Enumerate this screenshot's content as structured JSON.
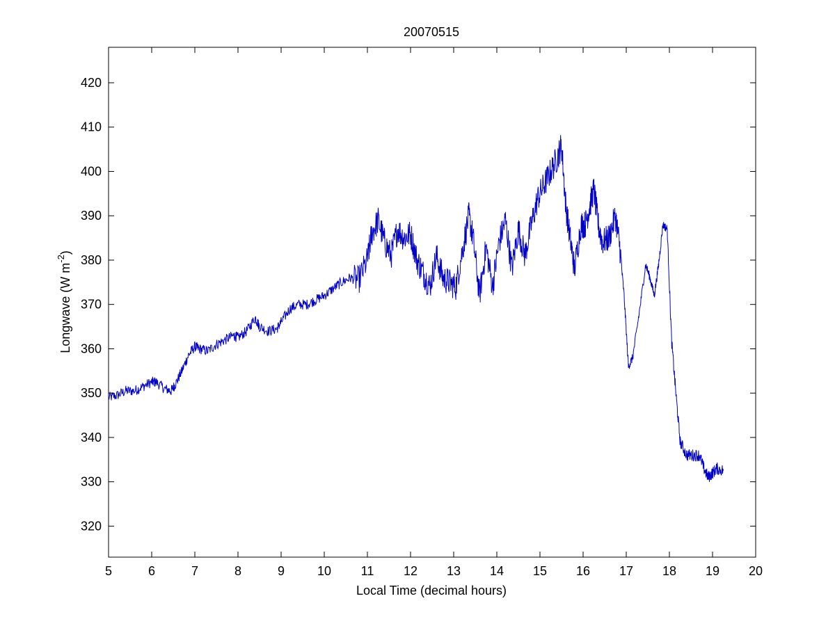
{
  "chart_data": {
    "type": "line",
    "title": "20070515",
    "xlabel": "Local Time (decimal hours)",
    "ylabel": "Longwave (W m",
    "ylabel_sup": "-2",
    "ylabel_close": ")",
    "xlim": [
      5,
      20
    ],
    "ylim": [
      313,
      428
    ],
    "xticks": [
      5,
      6,
      7,
      8,
      9,
      10,
      11,
      12,
      13,
      14,
      15,
      16,
      17,
      18,
      19,
      20
    ],
    "yticks": [
      320,
      330,
      340,
      350,
      360,
      370,
      380,
      390,
      400,
      410,
      420
    ],
    "grid": false,
    "line_color": "#0000c8",
    "series": [
      {
        "x": [
          5.0,
          5.2,
          5.4,
          5.6,
          5.8,
          6.0,
          6.1,
          6.3,
          6.45,
          6.55,
          6.7,
          6.85,
          7.0,
          7.1,
          7.3,
          7.5,
          7.7,
          7.9,
          8.0,
          8.2,
          8.4,
          8.5,
          8.7,
          8.9,
          9.0,
          9.2,
          9.4,
          9.6,
          9.8,
          10.0,
          10.2,
          10.4,
          10.6,
          10.8,
          11.0,
          11.1,
          11.25,
          11.4,
          11.55,
          11.7,
          11.85,
          12.0,
          12.15,
          12.3,
          12.45,
          12.6,
          12.75,
          12.9,
          13.05,
          13.2,
          13.35,
          13.45,
          13.6,
          13.75,
          13.9,
          14.05,
          14.2,
          14.35,
          14.5,
          14.65,
          14.8,
          14.95,
          15.1,
          15.25,
          15.4,
          15.5,
          15.6,
          15.7,
          15.8,
          15.95,
          16.05,
          16.15,
          16.25,
          16.35,
          16.45,
          16.6,
          16.75,
          16.85,
          16.95,
          17.05,
          17.15,
          17.3,
          17.45,
          17.55,
          17.65,
          17.75,
          17.85,
          17.95,
          18.05,
          18.15,
          18.25,
          18.4,
          18.55,
          18.7,
          18.8,
          18.9,
          19.0,
          19.1,
          19.25
        ],
        "y": [
          349,
          349.5,
          350.5,
          350.5,
          351.5,
          352.5,
          352.5,
          351,
          350.5,
          352,
          355,
          358.5,
          360.5,
          360,
          359.5,
          361,
          362,
          363,
          362.5,
          364,
          367,
          365,
          364,
          364.5,
          366,
          369,
          370,
          370,
          371,
          372,
          373.5,
          375,
          376,
          375.5,
          380,
          386,
          389,
          384,
          381,
          387,
          385,
          386,
          380,
          377,
          374,
          381,
          376,
          375,
          374,
          382,
          390,
          385,
          372,
          383,
          374,
          384,
          389,
          378,
          387,
          381,
          388,
          394,
          397,
          400,
          403,
          406,
          392,
          385,
          378,
          388,
          388,
          392,
          396,
          388,
          384,
          385,
          390,
          383,
          372,
          356,
          358,
          368,
          379,
          376,
          372,
          379,
          388,
          387,
          362,
          350,
          339,
          336,
          336,
          336,
          333,
          331,
          332,
          333,
          332.5
        ]
      }
    ]
  }
}
